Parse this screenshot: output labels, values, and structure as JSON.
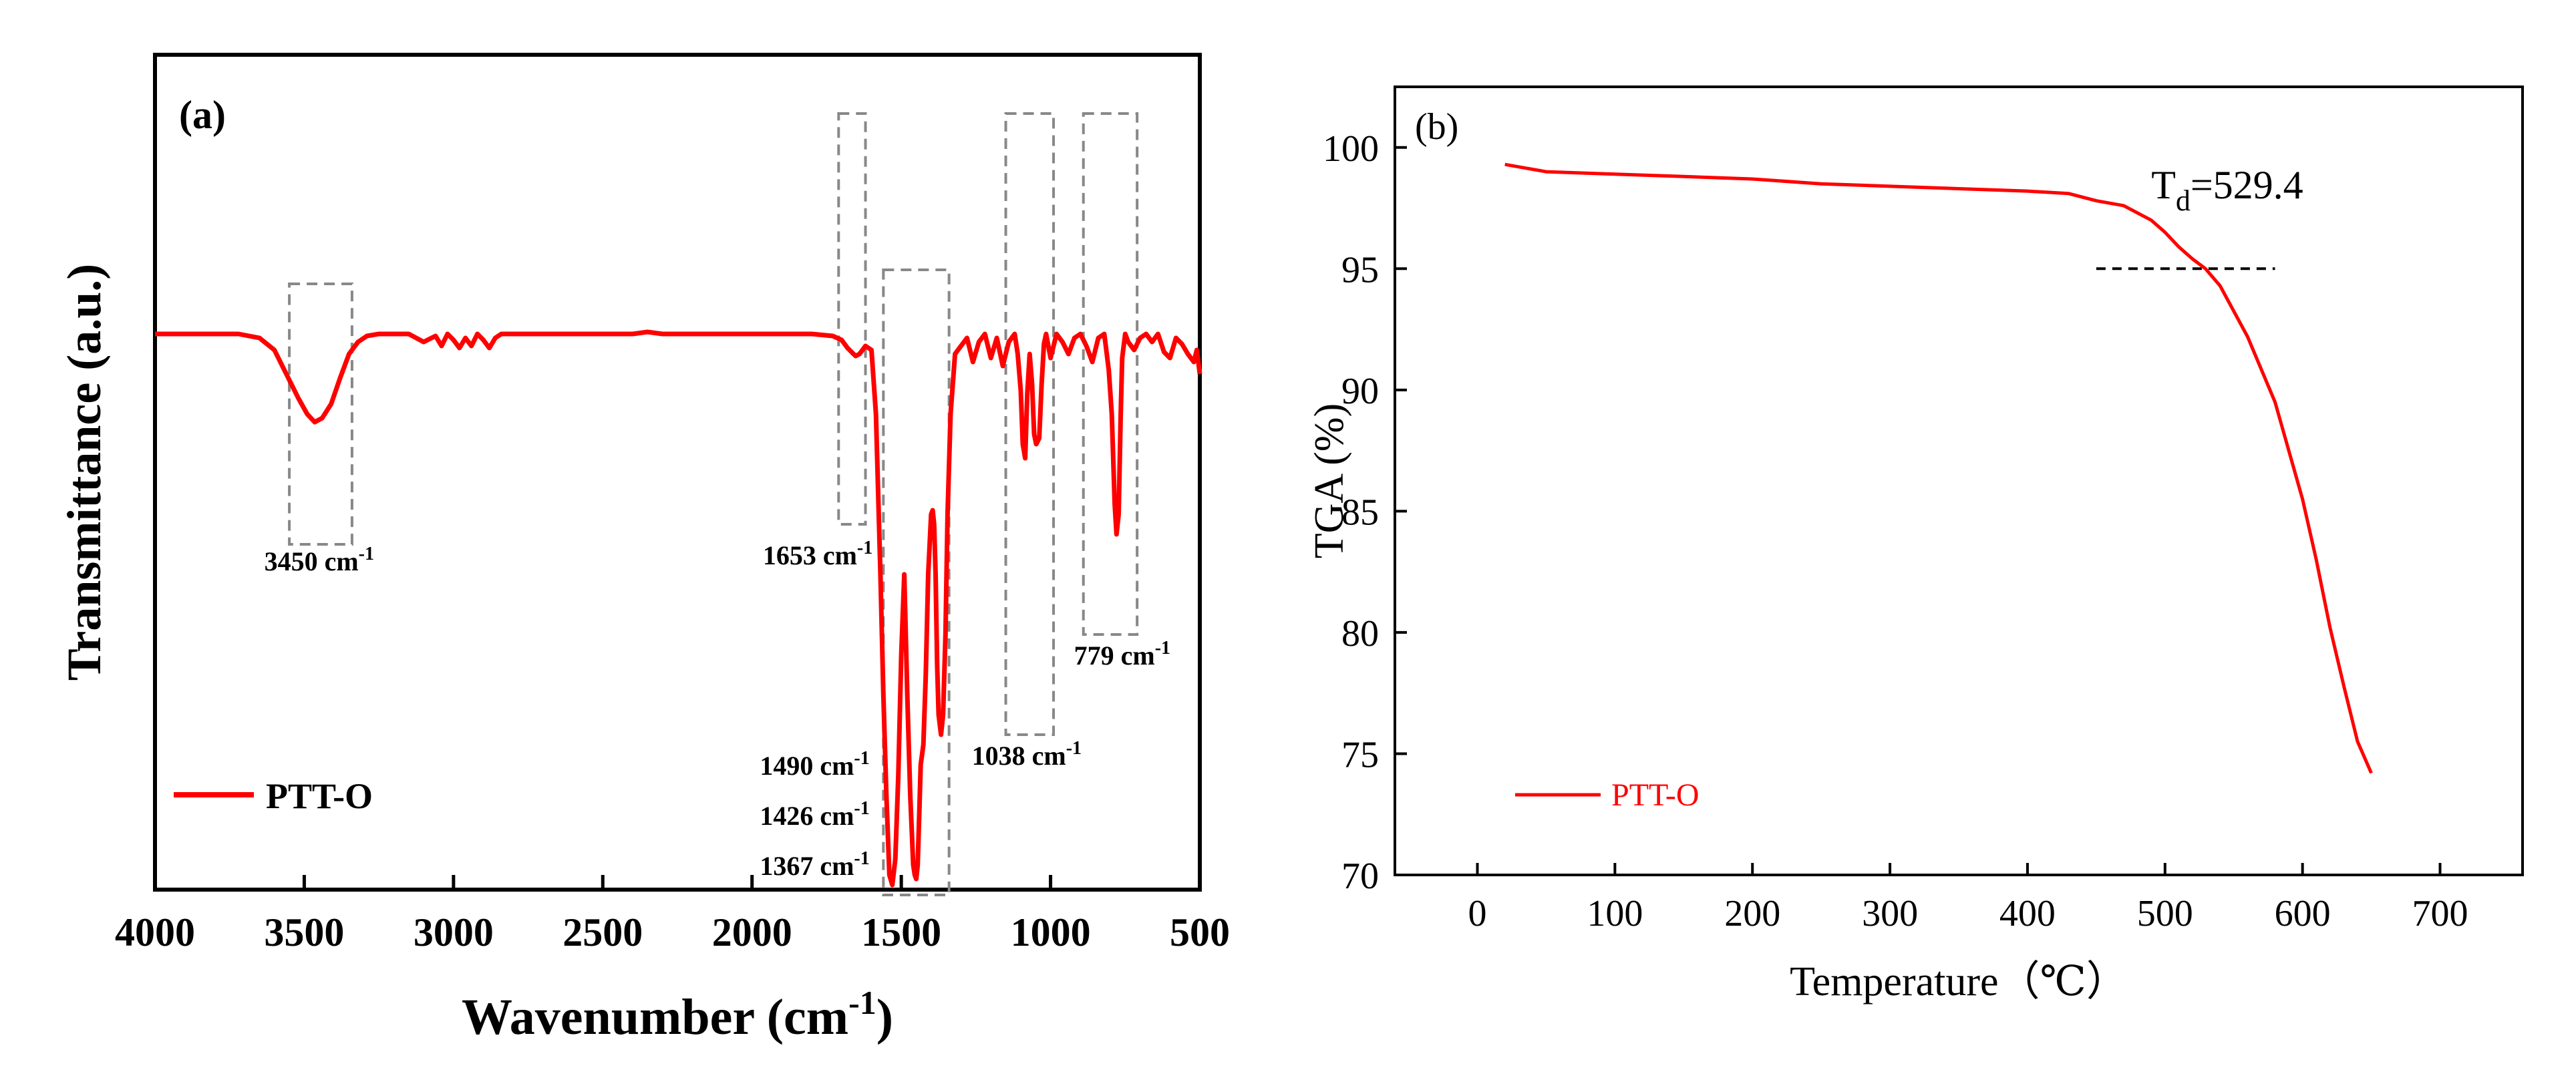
{
  "chart_data": [
    {
      "panel": "(a)",
      "type": "line",
      "xlabel": "Wavenumber (cm",
      "xlabel_sup": "-1",
      "xlabel_close": ")",
      "ylabel": "Transmittance (a.u.)",
      "xlim": [
        4000,
        500
      ],
      "x_ticks": [
        4000,
        3500,
        3000,
        2500,
        2000,
        1500,
        1000,
        500
      ],
      "y_axis_ticks_shown": false,
      "legend": {
        "label": "PTT-O",
        "position": "bottom-left"
      },
      "series": [
        {
          "name": "PTT-O",
          "color": "#ff0000",
          "x": [
            4000,
            3850,
            3720,
            3650,
            3600,
            3560,
            3520,
            3490,
            3465,
            3440,
            3410,
            3380,
            3350,
            3320,
            3290,
            3250,
            3200,
            3150,
            3100,
            3060,
            3040,
            3020,
            3000,
            2980,
            2960,
            2940,
            2920,
            2900,
            2880,
            2860,
            2840,
            2800,
            2600,
            2400,
            2350,
            2300,
            2200,
            2000,
            1800,
            1730,
            1700,
            1680,
            1660,
            1653,
            1640,
            1620,
            1600,
            1585,
            1570,
            1560,
            1550,
            1540,
            1530,
            1520,
            1510,
            1500,
            1490,
            1480,
            1470,
            1460,
            1455,
            1450,
            1445,
            1440,
            1435,
            1426,
            1418,
            1410,
            1400,
            1395,
            1390,
            1385,
            1380,
            1375,
            1367,
            1360,
            1352,
            1345,
            1335,
            1320,
            1300,
            1280,
            1260,
            1240,
            1220,
            1200,
            1180,
            1160,
            1140,
            1120,
            1110,
            1100,
            1093,
            1085,
            1078,
            1070,
            1062,
            1055,
            1048,
            1038,
            1030,
            1022,
            1015,
            1000,
            980,
            960,
            940,
            920,
            900,
            880,
            860,
            840,
            820,
            805,
            795,
            785,
            779,
            772,
            765,
            760,
            750,
            740,
            720,
            700,
            680,
            660,
            640,
            620,
            600,
            580,
            560,
            540,
            520,
            510,
            500
          ],
          "y": [
            0,
            0,
            0,
            -2,
            -8,
            -20,
            -32,
            -40,
            -44,
            -42,
            -35,
            -22,
            -10,
            -4,
            -1,
            0,
            0,
            0,
            -4,
            -1,
            -6,
            0,
            -3,
            -7,
            -2,
            -6,
            0,
            -3,
            -7,
            -2,
            0,
            0,
            0,
            0,
            1,
            0,
            0,
            0,
            0,
            -1,
            -3,
            -7,
            -10,
            -11,
            -10,
            -6,
            -8,
            -40,
            -120,
            -180,
            -230,
            -270,
            -275,
            -262,
            -220,
            -160,
            -120,
            -180,
            -230,
            -265,
            -270,
            -272,
            -265,
            -240,
            -215,
            -205,
            -170,
            -120,
            -90,
            -88,
            -95,
            -120,
            -165,
            -190,
            -200,
            -190,
            -150,
            -90,
            -40,
            -10,
            -6,
            -2,
            -14,
            -4,
            0,
            -12,
            -2,
            -16,
            -4,
            0,
            -10,
            -28,
            -55,
            -62,
            -30,
            -10,
            -25,
            -50,
            -55,
            -52,
            -25,
            -5,
            0,
            -12,
            0,
            -4,
            -10,
            -2,
            0,
            -6,
            -14,
            -2,
            0,
            -18,
            -40,
            -85,
            -100,
            -90,
            -40,
            -12,
            0,
            -4,
            -8,
            -2,
            0,
            -4,
            0,
            -9,
            -12,
            -2,
            -5,
            -10,
            -14,
            -8,
            -20
          ]
        }
      ],
      "annotations": [
        {
          "text": "3450 cm",
          "sup": "-1"
        },
        {
          "text": "1653 cm",
          "sup": "-1"
        },
        {
          "text": "1490 cm",
          "sup": "-1"
        },
        {
          "text": "1426 cm",
          "sup": "-1"
        },
        {
          "text": "1367 cm",
          "sup": "-1"
        },
        {
          "text": "1038 cm",
          "sup": "-1"
        },
        {
          "text": "779 cm",
          "sup": "-1"
        }
      ],
      "dashed_boxes": [
        {
          "x_range": [
            3550,
            3340
          ],
          "y_range": [
            25,
            -105
          ],
          "label_index": 0
        },
        {
          "x_range": [
            1710,
            1620
          ],
          "y_range": [
            110,
            -95
          ],
          "label_index": 1
        },
        {
          "x_range": [
            1560,
            1340
          ],
          "y_range": [
            32,
            -280
          ],
          "label_index": 2
        },
        {
          "x_range": [
            1150,
            990
          ],
          "y_range": [
            110,
            -200
          ],
          "label_index": 5
        },
        {
          "x_range": [
            890,
            710
          ],
          "y_range": [
            110,
            -150
          ],
          "label_index": 6
        }
      ]
    },
    {
      "panel": "(b)",
      "type": "line",
      "xlabel": "Temperature（℃）",
      "ylabel": "TGA (%)",
      "xlim": [
        -60,
        760
      ],
      "ylim": [
        70,
        102.5
      ],
      "x_ticks": [
        0,
        100,
        200,
        300,
        400,
        500,
        600,
        700
      ],
      "y_ticks": [
        70,
        75,
        80,
        85,
        90,
        95,
        100
      ],
      "legend": {
        "label": "PTT-O",
        "position": "bottom-left"
      },
      "series": [
        {
          "name": "PTT-O",
          "color": "#ff0000",
          "x": [
            20,
            50,
            100,
            150,
            200,
            250,
            300,
            350,
            400,
            430,
            450,
            470,
            490,
            500,
            510,
            520,
            529.4,
            540,
            560,
            580,
            600,
            610,
            620,
            630,
            640,
            650
          ],
          "y": [
            99.3,
            99.0,
            98.9,
            98.8,
            98.7,
            98.5,
            98.4,
            98.3,
            98.2,
            98.1,
            97.8,
            97.6,
            97.0,
            96.5,
            95.9,
            95.4,
            95.0,
            94.3,
            92.2,
            89.5,
            85.5,
            83.0,
            80.2,
            77.8,
            75.5,
            74.2
          ]
        }
      ],
      "annotation": {
        "text": "T",
        "subscript": "d",
        "value_text": "=529.4",
        "x": 529.4,
        "y": 95.0
      },
      "dashed_line": {
        "x_range": [
          450,
          580
        ],
        "y": 95.0
      }
    }
  ]
}
